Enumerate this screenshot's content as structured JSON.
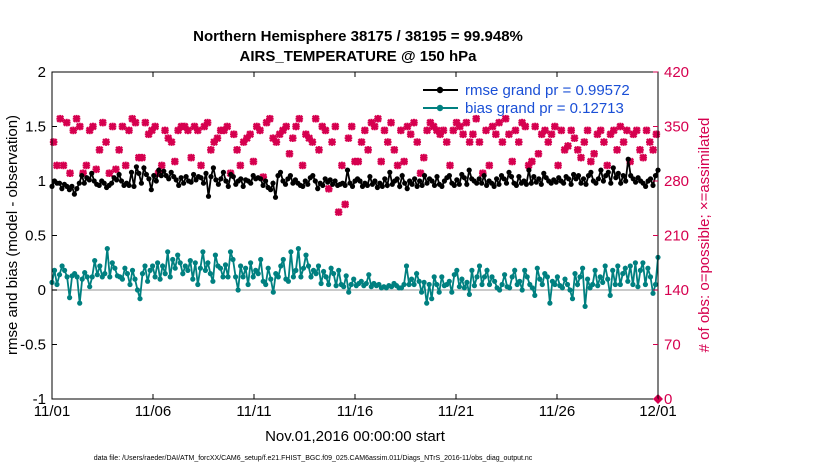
{
  "chart_data": {
    "type": "line",
    "title": "Northern Hemisphere 38175 / 38195 = 99.948%",
    "subtitle": "AIRS_TEMPERATURE @ 150 hPa",
    "xlabel": "Nov.01,2016 00:00:00 start",
    "ylabel": "rmse and bias (model - observation)",
    "y2label": "# of obs: o=possible; ×=assimilated",
    "x_ticks": [
      "11/01",
      "11/06",
      "11/11",
      "11/16",
      "11/21",
      "11/26",
      "12/01"
    ],
    "x_range_days": [
      0,
      30
    ],
    "ylim": [
      -1,
      2
    ],
    "y_ticks": [
      "-1",
      "-0.5",
      "0",
      "0.5",
      "1",
      "1.5",
      "2"
    ],
    "y2lim": [
      0,
      420
    ],
    "y2_ticks": [
      "0",
      "70",
      "140",
      "210",
      "280",
      "350",
      "420"
    ],
    "footer": "data file: /Users/raeder/DAI/ATM_forcXX/CAM6_setup/f.e21.FHIST_BGC.f09_025.CAM6assim.011/Diags_NTrS_2016-11/obs_diag_output.nc",
    "colors": {
      "rmse": "#000000",
      "bias": "#008080",
      "obs": "#d6004f",
      "zero_line": "#b8b8b8"
    },
    "series": [
      {
        "name": "rmse grand pr = 0.99572",
        "axis": "left",
        "values": [
          0.95,
          1.0,
          0.98,
          0.98,
          0.93,
          0.97,
          0.95,
          0.92,
          0.95,
          0.88,
          0.93,
          0.98,
          1.05,
          0.98,
          1.03,
          1.01,
          1.07,
          1.0,
          0.97,
          0.96,
          1.0,
          0.98,
          0.94,
          0.96,
          0.98,
          1.03,
          1.01,
          1.06,
          1.0,
          0.96,
          0.98,
          0.96,
          1.08,
          0.95,
          1.13,
          1.07,
          0.98,
          1.12,
          1.06,
          1.02,
          0.92,
          1.05,
          1.0,
          1.1,
          1.05,
          1.09,
          1.05,
          1.02,
          1.08,
          1.04,
          1.01,
          0.96,
          1.03,
          0.98,
          1.04,
          1.0,
          0.99,
          1.06,
          1.01,
          1.04,
          1.03,
          0.98,
          1.07,
          0.86,
          1.04,
          1.12,
          1.01,
          0.97,
          1.02,
          1.08,
          1.0,
          0.95,
          1.06,
          1.04,
          0.97,
          1.0,
          1.02,
          0.95,
          1.01,
          1.0,
          0.98,
          1.05,
          1.02,
          1.03,
          1.02,
          0.96,
          1.0,
          0.94,
          0.92,
          0.98,
          0.85,
          1.05,
          1.08,
          1.0,
          0.97,
          1.02,
          1.05,
          0.98,
          1.01,
          0.98,
          0.96,
          0.95,
          1.0,
          0.97,
          1.03,
          1.05,
          1.0,
          0.93,
          0.98,
          0.96,
          1.02,
          0.99,
          1.01,
          0.97,
          1.0,
          0.96,
          0.97,
          0.98,
          0.96,
          1.1,
          0.98,
          0.95,
          1.0,
          1.02,
          1.0,
          0.95,
          0.98,
          0.96,
          1.04,
          0.97,
          1.0,
          0.94,
          0.98,
          0.95,
          1.02,
          0.96,
          1.08,
          0.97,
          1.0,
          1.02,
          0.95,
          1.05,
          0.98,
          0.93,
          1.0,
          0.97,
          1.02,
          0.95,
          1.0,
          0.96,
          1.05,
          0.98,
          1.02,
          1.0,
          0.96,
          1.04,
          0.97,
          0.95,
          1.0,
          1.03,
          1.05,
          0.98,
          0.96,
          1.01,
          0.97,
          1.06,
          1.03,
          0.97,
          1.1,
          1.02,
          1.0,
          0.98,
          1.02,
          0.98,
          1.05,
          0.96,
          1.0,
          0.98,
          0.95,
          1.02,
          0.97,
          1.05,
          1.02,
          0.98,
          1.08,
          1.04,
          0.98,
          0.96,
          1.04,
          0.98,
          1.0,
          0.97,
          1.1,
          0.98,
          1.04,
          0.99,
          1.02,
          0.97,
          1.07,
          1.03,
          1.0,
          0.98,
          1.01,
          0.99,
          1.03,
          1.0,
          0.98,
          1.04,
          1.02,
          0.97,
          1.06,
          1.02,
          1.05,
          0.98,
          1.02,
          0.97,
          1.05,
          1.08,
          1.0,
          0.98,
          1.02,
          1.1,
          1.0,
          1.05,
          1.08,
          0.98,
          1.12,
          1.03,
          1.07,
          0.98,
          1.05,
          1.0,
          1.2,
          1.05,
          1.02,
          0.99,
          1.03,
          1.0,
          0.98,
          0.95,
          1.0,
          1.02,
          0.96,
          1.05,
          1.1
        ]
      },
      {
        "name": "bias grand pr = 0.12713",
        "axis": "left",
        "values": [
          0.07,
          0.18,
          0.05,
          0.14,
          0.22,
          0.18,
          0.12,
          -0.07,
          0.13,
          0.15,
          0.12,
          -0.12,
          0.1,
          0.16,
          0.12,
          0.03,
          0.12,
          0.27,
          0.14,
          0.22,
          0.12,
          0.15,
          0.38,
          0.12,
          0.25,
          0.2,
          0.13,
          0.12,
          0.1,
          0.2,
          0.15,
          0.05,
          0.18,
          0.1,
          0.0,
          -0.08,
          0.15,
          0.22,
          0.08,
          0.18,
          0.22,
          0.12,
          0.25,
          0.1,
          0.22,
          0.15,
          0.35,
          0.12,
          0.28,
          0.2,
          0.32,
          0.25,
          0.15,
          0.22,
          0.18,
          0.27,
          0.1,
          0.25,
          0.05,
          0.2,
          0.35,
          0.18,
          0.25,
          0.15,
          0.08,
          0.32,
          0.22,
          0.2,
          0.12,
          0.23,
          0.12,
          0.35,
          0.28,
          0.12,
          0.0,
          0.22,
          0.12,
          0.2,
          0.05,
          0.25,
          0.12,
          0.18,
          0.15,
          0.28,
          0.08,
          0.05,
          0.2,
          0.1,
          -0.02,
          0.15,
          0.12,
          0.22,
          0.28,
          0.1,
          0.08,
          0.35,
          0.12,
          0.18,
          0.38,
          0.12,
          0.2,
          0.32,
          0.22,
          0.12,
          0.18,
          0.15,
          0.22,
          0.06,
          0.17,
          0.12,
          0.05,
          0.2,
          0.15,
          0.04,
          0.18,
          0.05,
          0.03,
          0.13,
          -0.02,
          0.05,
          0.1,
          0.04,
          0.06,
          0.08,
          0.04,
          0.06,
          0.14,
          0.03,
          0.06,
          0.04,
          0.05,
          0.02,
          0.03,
          0.02,
          0.04,
          0.03,
          0.06,
          0.04,
          0.02,
          0.02,
          0.05,
          0.22,
          0.05,
          0.1,
          0.05,
          0.15,
          0.08,
          -0.02,
          0.07,
          -0.12,
          0.05,
          -0.08,
          0.12,
          0.05,
          -0.02,
          0.12,
          0.04,
          0.05,
          0.08,
          -0.02,
          0.14,
          0.18,
          0.03,
          0.1,
          0.02,
          0.07,
          -0.04,
          0.18,
          0.04,
          0.12,
          0.22,
          0.05,
          0.12,
          0.18,
          0.05,
          0.12,
          0.08,
          0.02,
          0.0,
          0.05,
          0.14,
          0.03,
          0.02,
          0.12,
          0.18,
          0.05,
          0.08,
          0.0,
          0.18,
          0.12,
          0.05,
          0.02,
          -0.05,
          0.2,
          0.1,
          0.05,
          0.15,
          0.12,
          -0.12,
          0.08,
          0.05,
          0.12,
          0.04,
          0.02,
          0.1,
          0.05,
          0.0,
          -0.08,
          0.15,
          0.05,
          0.12,
          0.2,
          -0.15,
          0.1,
          0.02,
          0.05,
          0.18,
          0.04,
          0.12,
          0.07,
          0.22,
          0.1,
          -0.05,
          0.18,
          0.05,
          0.22,
          0.05,
          0.15,
          0.2,
          0.08,
          0.22,
          0.05,
          0.25,
          0.03,
          0.18,
          0.25,
          0.05,
          0.2,
          0.12,
          -0.03,
          0.05,
          0.3
        ]
      },
      {
        "name": "obs assimilated",
        "axis": "right",
        "marker": "x",
        "values": [
          330,
          300,
          360,
          300,
          355,
          290,
          345,
          360,
          350,
          290,
          300,
          345,
          350,
          295,
          320,
          355,
          330,
          290,
          350,
          295,
          320,
          350,
          300,
          345,
          360,
          355,
          310,
          310,
          355,
          340,
          345,
          350,
          290,
          300,
          345,
          335,
          330,
          305,
          345,
          350,
          350,
          345,
          310,
          350,
          345,
          300,
          350,
          355,
          320,
          330,
          335,
          345,
          345,
          350,
          290,
          340,
          320,
          300,
          330,
          335,
          340,
          305,
          350,
          345,
          285,
          355,
          360,
          335,
          330,
          340,
          345,
          350,
          315,
          335,
          350,
          360,
          300,
          340,
          335,
          330,
          360,
          320,
          350,
          345,
          270,
          330,
          350,
          240,
          300,
          250,
          335,
          350,
          305,
          305,
          330,
          345,
          320,
          355,
          350,
          360,
          305,
          345,
          330,
          355,
          320,
          300,
          345,
          305,
          350,
          340,
          355,
          330,
          290,
          310,
          345,
          355,
          350,
          345,
          340,
          345,
          330,
          300,
          345,
          355,
          350,
          340,
          355,
          330,
          340,
          360,
          330,
          290,
          345,
          300,
          350,
          340,
          355,
          330,
          360,
          340,
          305,
          345,
          330,
          355,
          350,
          300,
          305,
          350,
          315,
          340,
          345,
          330,
          340,
          350,
          300,
          345,
          320,
          325,
          345,
          335,
          320,
          310,
          330,
          345,
          305,
          315,
          340,
          345,
          330,
          300,
          340,
          345,
          320,
          350,
          330,
          345,
          305,
          340,
          345,
          320,
          310,
          345,
          330,
          320,
          340
        ]
      }
    ],
    "legend": {
      "position": "top-right",
      "entries": [
        "rmse grand pr = 0.99572",
        "bias grand pr = 0.12713"
      ]
    }
  }
}
